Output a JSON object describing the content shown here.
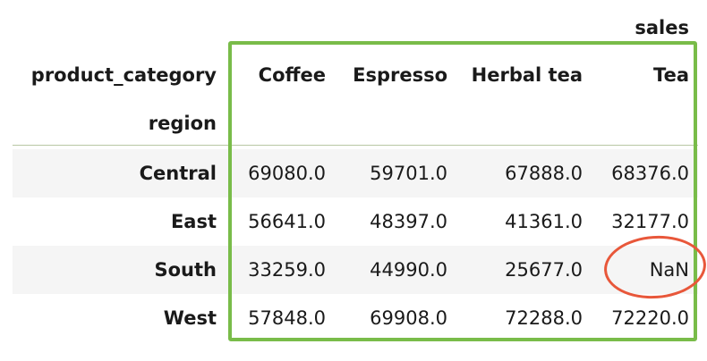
{
  "table": {
    "top_header": "sales",
    "columns_name": "product_category",
    "index_name": "region",
    "columns": [
      "Coffee",
      "Espresso",
      "Herbal tea",
      "Tea"
    ],
    "rows": [
      {
        "index": "Central",
        "values": [
          "69080.0",
          "59701.0",
          "67888.0",
          "68376.0"
        ]
      },
      {
        "index": "East",
        "values": [
          "56641.0",
          "48397.0",
          "41361.0",
          "32177.0"
        ]
      },
      {
        "index": "South",
        "values": [
          "33259.0",
          "44990.0",
          "25677.0",
          "NaN"
        ]
      },
      {
        "index": "West",
        "values": [
          "57848.0",
          "69908.0",
          "72288.0",
          "72220.0"
        ]
      }
    ]
  },
  "highlights": {
    "data_box_color": "#79bc49",
    "nan_circle_color": "#e8573a"
  }
}
